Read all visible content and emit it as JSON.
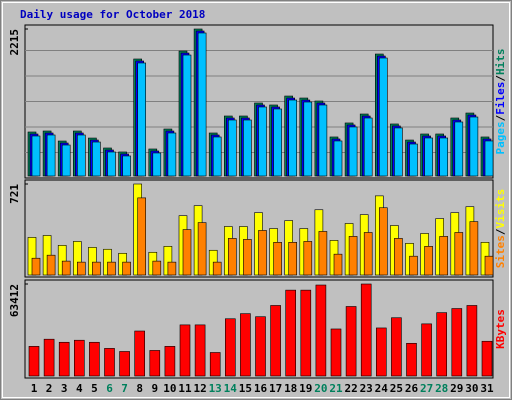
{
  "chart_data": [
    {
      "type": "bar",
      "title": "Daily usage for October 2018",
      "legend_separator": "/",
      "ylim": [
        0,
        2215
      ],
      "yticks": [
        2215
      ],
      "series": [
        {
          "name": "Hits",
          "color": "#00805c",
          "values": [
            663,
            678,
            527,
            678,
            572,
            422,
            362,
            1763,
            407,
            708,
            1883,
            2215,
            648,
            904,
            904,
            1100,
            1070,
            1205,
            1175,
            1130,
            588,
            799,
            934,
            1838,
            784,
            542,
            633,
            633,
            874,
            949,
            588
          ]
        },
        {
          "name": "Files",
          "color": "#0000ff",
          "values": [
            633,
            648,
            497,
            648,
            542,
            392,
            332,
            1733,
            377,
            678,
            1853,
            2185,
            618,
            874,
            874,
            1070,
            1040,
            1175,
            1145,
            1100,
            558,
            769,
            904,
            1808,
            754,
            512,
            603,
            603,
            844,
            919,
            558
          ]
        },
        {
          "name": "Pages",
          "color": "#00c0ff",
          "values": [
            603,
            618,
            467,
            618,
            512,
            362,
            302,
            1703,
            347,
            648,
            1823,
            2155,
            588,
            844,
            844,
            1040,
            1010,
            1145,
            1115,
            1070,
            528,
            739,
            874,
            1778,
            724,
            482,
            573,
            573,
            814,
            889,
            528
          ]
        }
      ]
    },
    {
      "type": "bar",
      "ylim": [
        0,
        721
      ],
      "yticks": [
        721
      ],
      "series": [
        {
          "name": "Visits",
          "color": "#ffff00",
          "values": [
            298,
            313,
            235,
            266,
            219,
            204,
            172,
            721,
            180,
            227,
            470,
            549,
            196,
            384,
            384,
            494,
            368,
            431,
            368,
            517,
            274,
            408,
            478,
            627,
            392,
            251,
            329,
            447,
            494,
            541,
            259
          ]
        },
        {
          "name": "Sites",
          "color": "#ff8000",
          "values": [
            133,
            157,
            110,
            102,
            102,
            102,
            102,
            611,
            110,
            102,
            360,
            415,
            102,
            290,
            282,
            353,
            259,
            259,
            266,
            345,
            165,
            306,
            337,
            533,
            290,
            149,
            227,
            306,
            337,
            423,
            149
          ]
        }
      ]
    },
    {
      "type": "bar",
      "ylim": [
        0,
        63412
      ],
      "yticks": [
        63412
      ],
      "series": [
        {
          "name": "KBytes",
          "color": "#ff0000",
          "values": [
            20433,
            25365,
            23251,
            24660,
            23251,
            19024,
            16910,
            31001,
            17614,
            20433,
            35229,
            35229,
            16205,
            39456,
            42979,
            40866,
            48616,
            59184,
            59184,
            62707,
            32410,
            47911,
            63412,
            33115,
            40161,
            22546,
            35933,
            43684,
            46502,
            48616,
            23955
          ]
        }
      ],
      "categories": [
        "1",
        "2",
        "3",
        "4",
        "5",
        "6",
        "7",
        "8",
        "9",
        "10",
        "11",
        "12",
        "13",
        "14",
        "15",
        "16",
        "17",
        "18",
        "19",
        "20",
        "21",
        "22",
        "23",
        "24",
        "25",
        "26",
        "27",
        "28",
        "29",
        "30",
        "31"
      ],
      "category_colors": [
        "#000000",
        "#000000",
        "#000000",
        "#000000",
        "#000000",
        "#00805c",
        "#00805c",
        "#000000",
        "#000000",
        "#000000",
        "#000000",
        "#000000",
        "#00805c",
        "#00805c",
        "#000000",
        "#000000",
        "#000000",
        "#000000",
        "#000000",
        "#00805c",
        "#00805c",
        "#000000",
        "#000000",
        "#000000",
        "#000000",
        "#000000",
        "#00805c",
        "#00805c",
        "#000000",
        "#000000",
        "#000000"
      ]
    }
  ]
}
